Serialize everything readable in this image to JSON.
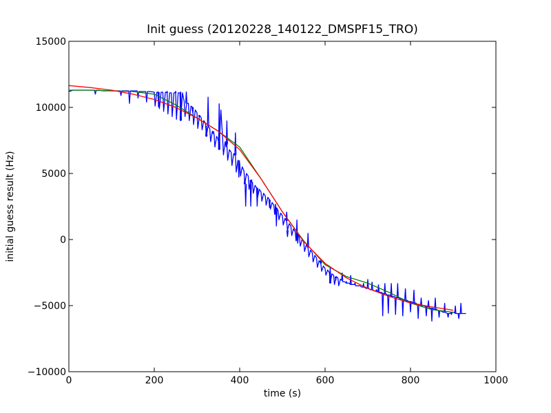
{
  "chart_data": {
    "type": "line",
    "title": "Init guess (20120228_140122_DMSPF15_TRO)",
    "xlabel": "time (s)",
    "ylabel": "initial guess result (Hz)",
    "xlim": [
      0,
      1000
    ],
    "ylim": [
      -10000,
      15000
    ],
    "xticks": [
      0,
      200,
      400,
      600,
      800,
      1000
    ],
    "xtick_labels": [
      "0",
      "200",
      "400",
      "600",
      "800",
      "1000"
    ],
    "yticks": [
      -10000,
      -5000,
      0,
      5000,
      10000,
      15000
    ],
    "ytick_labels": [
      "−10000",
      "−5000",
      "0",
      "5000",
      "10000",
      "15000"
    ],
    "grid": false,
    "series": [
      {
        "color": "#0000ff",
        "x": [
          0,
          10,
          20,
          30,
          40,
          50,
          60,
          62,
          64,
          70,
          80,
          90,
          100,
          110,
          120,
          122,
          124,
          130,
          140,
          142,
          144,
          150,
          160,
          162,
          164,
          170,
          180,
          182,
          184,
          190,
          200,
          202,
          206,
          210,
          212,
          216,
          220,
          222,
          226,
          230,
          232,
          236,
          240,
          242,
          246,
          250,
          252,
          256,
          260,
          262,
          266,
          270,
          272,
          276,
          280,
          282,
          286,
          290,
          292,
          296,
          300,
          302,
          306,
          310,
          312,
          316,
          320,
          322,
          326,
          330,
          332,
          336,
          340,
          342,
          346,
          350,
          352,
          356,
          360,
          362,
          366,
          370,
          372,
          376,
          380,
          382,
          386,
          390,
          392,
          396,
          400,
          402,
          406,
          410,
          412,
          416,
          420,
          422,
          426,
          430,
          432,
          436,
          440,
          442,
          446,
          450,
          452,
          456,
          460,
          462,
          466,
          470,
          472,
          476,
          480,
          482,
          486,
          490,
          492,
          496,
          500,
          502,
          506,
          510,
          512,
          516,
          520,
          522,
          526,
          530,
          532,
          536,
          540,
          542,
          546,
          550,
          552,
          556,
          560,
          562,
          566,
          570,
          572,
          576,
          580,
          582,
          586,
          590,
          592,
          596,
          600,
          602,
          606,
          610,
          612,
          616,
          620,
          622,
          626,
          630,
          632,
          636,
          640,
          642,
          646,
          650,
          652,
          656,
          660,
          662,
          666,
          670,
          672,
          676,
          680,
          682,
          686,
          690,
          692,
          696,
          700,
          702,
          706,
          710,
          712,
          716,
          720,
          722,
          726,
          730,
          732,
          736,
          740,
          742,
          746,
          750,
          752,
          756,
          760,
          762,
          766,
          770,
          772,
          776,
          780,
          782,
          786,
          790,
          792,
          796,
          800,
          802,
          806,
          810,
          812,
          816,
          820,
          822,
          826,
          830,
          832,
          836,
          840,
          842,
          846,
          850,
          852,
          856,
          860,
          862,
          866,
          870,
          872,
          876,
          880,
          882,
          886,
          890,
          892,
          896,
          900,
          902,
          906,
          910,
          912,
          916,
          920,
          925,
          930
        ],
        "y": [
          11200,
          11300,
          11300,
          11300,
          11300,
          11300,
          11300,
          11000,
          11300,
          11300,
          11250,
          11250,
          11250,
          11250,
          11250,
          10900,
          11250,
          11250,
          11250,
          10300,
          11250,
          11250,
          11250,
          10700,
          11200,
          11200,
          11200,
          10400,
          11200,
          11200,
          11150,
          10100,
          11150,
          11150,
          9900,
          11150,
          11150,
          9700,
          11150,
          11100,
          9500,
          11100,
          11100,
          9300,
          11100,
          11100,
          9100,
          11100,
          11100,
          9000,
          11100,
          10450,
          9300,
          10300,
          10300,
          9000,
          10100,
          10000,
          8700,
          9800,
          9600,
          8400,
          9400,
          9200,
          8300,
          9000,
          8800,
          7800,
          8600,
          8400,
          7400,
          8200,
          8000,
          7000,
          7800,
          7600,
          6800,
          9800,
          7700,
          6400,
          7400,
          7200,
          6000,
          6800,
          6600,
          5600,
          6500,
          6400,
          5100,
          6000,
          5800,
          4800,
          5500,
          5200,
          4200,
          5000,
          4800,
          3800,
          4500,
          4300,
          3500,
          4100,
          3900,
          3200,
          3800,
          3600,
          2900,
          3500,
          3300,
          2600,
          3200,
          3000,
          2300,
          2800,
          2600,
          1900,
          2400,
          2200,
          1500,
          2000,
          1800,
          1100,
          1600,
          1400,
          700,
          1200,
          1000,
          300,
          800,
          600,
          -100,
          400,
          200,
          -500,
          0,
          -200,
          -900,
          -400,
          -600,
          -1300,
          -800,
          -1000,
          -1700,
          -1200,
          -1400,
          -2100,
          -1600,
          -1800,
          -2400,
          -2000,
          -2200,
          -2700,
          -2300,
          -2500,
          -3300,
          -2600,
          -2700,
          -3400,
          -2800,
          -2900,
          -3500,
          -3000,
          -3100,
          -3200,
          -3200,
          -3300,
          -3300,
          -3300,
          -3400,
          -3400,
          -3400,
          -3400,
          -3500,
          -3500,
          -3500,
          -3500,
          -3600,
          -3600,
          -3600,
          -3700,
          -3700,
          -3700,
          -3800,
          -3800,
          -3800,
          -3900,
          -3900,
          -3900,
          -4000,
          -4000,
          -4000,
          -4100,
          -4100,
          -4100,
          -4200,
          -4200,
          -4200,
          -4300,
          -4300,
          -4300,
          -4400,
          -4400,
          -4400,
          -4500,
          -4500,
          -4500,
          -4600,
          -4600,
          -4600,
          -4700,
          -4700,
          -4700,
          -4800,
          -4800,
          -4800,
          -4900,
          -4900,
          -4900,
          -5000,
          -5000,
          -5000,
          -5100,
          -5100,
          -5100,
          -5200,
          -5200,
          -5200,
          -5300,
          -5300,
          -5300,
          -5400,
          -5400,
          -5400,
          -5500,
          -5500,
          -5500,
          -5600,
          -5600,
          -5600,
          -5500,
          -5500,
          -5500,
          -5600,
          -5600,
          -5600,
          -5600,
          -5600,
          -5600,
          -5600
        ],
        "spikes": [
          [
            210,
            10000
          ],
          [
            230,
            11200
          ],
          [
            250,
            11200
          ],
          [
            262,
            11200
          ],
          [
            275,
            11200
          ],
          [
            290,
            9600
          ],
          [
            305,
            9300
          ],
          [
            322,
            8600
          ],
          [
            326,
            10800
          ],
          [
            338,
            8000
          ],
          [
            350,
            7500
          ],
          [
            352,
            10300
          ],
          [
            368,
            7000
          ],
          [
            370,
            9000
          ],
          [
            388,
            6400
          ],
          [
            390,
            8100
          ],
          [
            398,
            4700
          ],
          [
            412,
            4600
          ],
          [
            414,
            2500
          ],
          [
            426,
            2500
          ],
          [
            428,
            4500
          ],
          [
            440,
            3900
          ],
          [
            441,
            2500
          ],
          [
            470,
            2400
          ],
          [
            484,
            2700
          ],
          [
            486,
            1000
          ],
          [
            510,
            2100
          ],
          [
            512,
            200
          ],
          [
            534,
            1500
          ],
          [
            536,
            -300
          ],
          [
            560,
            500
          ],
          [
            590,
            -1500
          ],
          [
            612,
            -2100
          ],
          [
            625,
            -3100
          ],
          [
            640,
            -2500
          ],
          [
            650,
            -3200
          ],
          [
            660,
            -2700
          ],
          [
            670,
            -3300
          ],
          [
            690,
            -3300
          ],
          [
            700,
            -3000
          ],
          [
            710,
            -3200
          ],
          [
            720,
            -3800
          ],
          [
            725,
            -3400
          ],
          [
            735,
            -5800
          ],
          [
            740,
            -3300
          ],
          [
            748,
            -5600
          ],
          [
            755,
            -3300
          ],
          [
            765,
            -5700
          ],
          [
            770,
            -3300
          ],
          [
            782,
            -5800
          ],
          [
            788,
            -3700
          ],
          [
            800,
            -5500
          ],
          [
            808,
            -3800
          ],
          [
            818,
            -6000
          ],
          [
            825,
            -4400
          ],
          [
            837,
            -5800
          ],
          [
            842,
            -4600
          ],
          [
            850,
            -6200
          ],
          [
            858,
            -4400
          ],
          [
            867,
            -5900
          ],
          [
            880,
            -4800
          ],
          [
            888,
            -5900
          ],
          [
            896,
            -5700
          ],
          [
            905,
            -5000
          ],
          [
            913,
            -6000
          ],
          [
            918,
            -4800
          ]
        ]
      },
      {
        "color": "#008000",
        "x": [
          0,
          50,
          100,
          150,
          200,
          250,
          300,
          350,
          400,
          450,
          500,
          550,
          600,
          650,
          700,
          750,
          800,
          850,
          900
        ],
        "y": [
          11300,
          11300,
          11250,
          11200,
          11000,
          10200,
          9200,
          8200,
          7000,
          4600,
          2100,
          -100,
          -1900,
          -2800,
          -3300,
          -4000,
          -4800,
          -5300,
          -5500
        ]
      },
      {
        "color": "#ff0000",
        "x": [
          0,
          50,
          100,
          150,
          200,
          250,
          300,
          350,
          400,
          450,
          500,
          550,
          600,
          650,
          700,
          750,
          800,
          850,
          900
        ],
        "y": [
          11650,
          11500,
          11300,
          11000,
          10600,
          10000,
          9200,
          8200,
          6800,
          4600,
          2100,
          -150,
          -1800,
          -2900,
          -3700,
          -4300,
          -4800,
          -5100,
          -5350
        ]
      }
    ]
  }
}
